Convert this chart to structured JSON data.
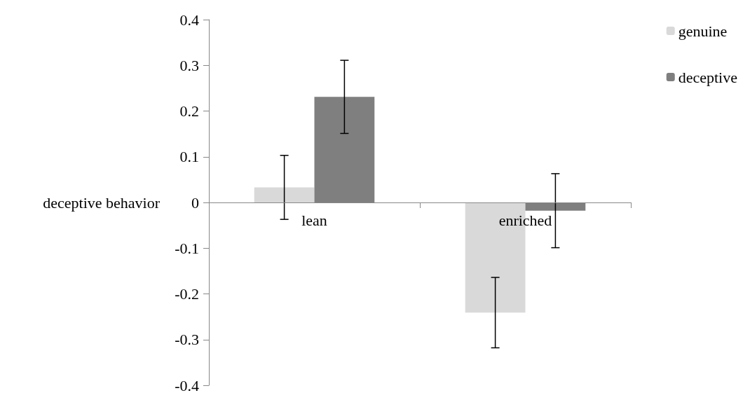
{
  "chart_data": {
    "type": "bar",
    "ylabel": "deceptive behavior",
    "categories": [
      "lean",
      "enriched"
    ],
    "series": [
      {
        "name": "genuine",
        "color": "#d9d9d9",
        "values": [
          0.033,
          -0.241
        ],
        "errors": [
          0.07,
          0.077
        ]
      },
      {
        "name": "deceptive",
        "color": "#7f7f7f",
        "values": [
          0.231,
          -0.018
        ],
        "errors": [
          0.08,
          0.081
        ]
      }
    ],
    "ylim": [
      -0.4,
      0.4
    ],
    "yticks": [
      -0.4,
      -0.3,
      -0.2,
      -0.1,
      0,
      0.1,
      0.2,
      0.3,
      0.4
    ],
    "legend": "top right"
  }
}
